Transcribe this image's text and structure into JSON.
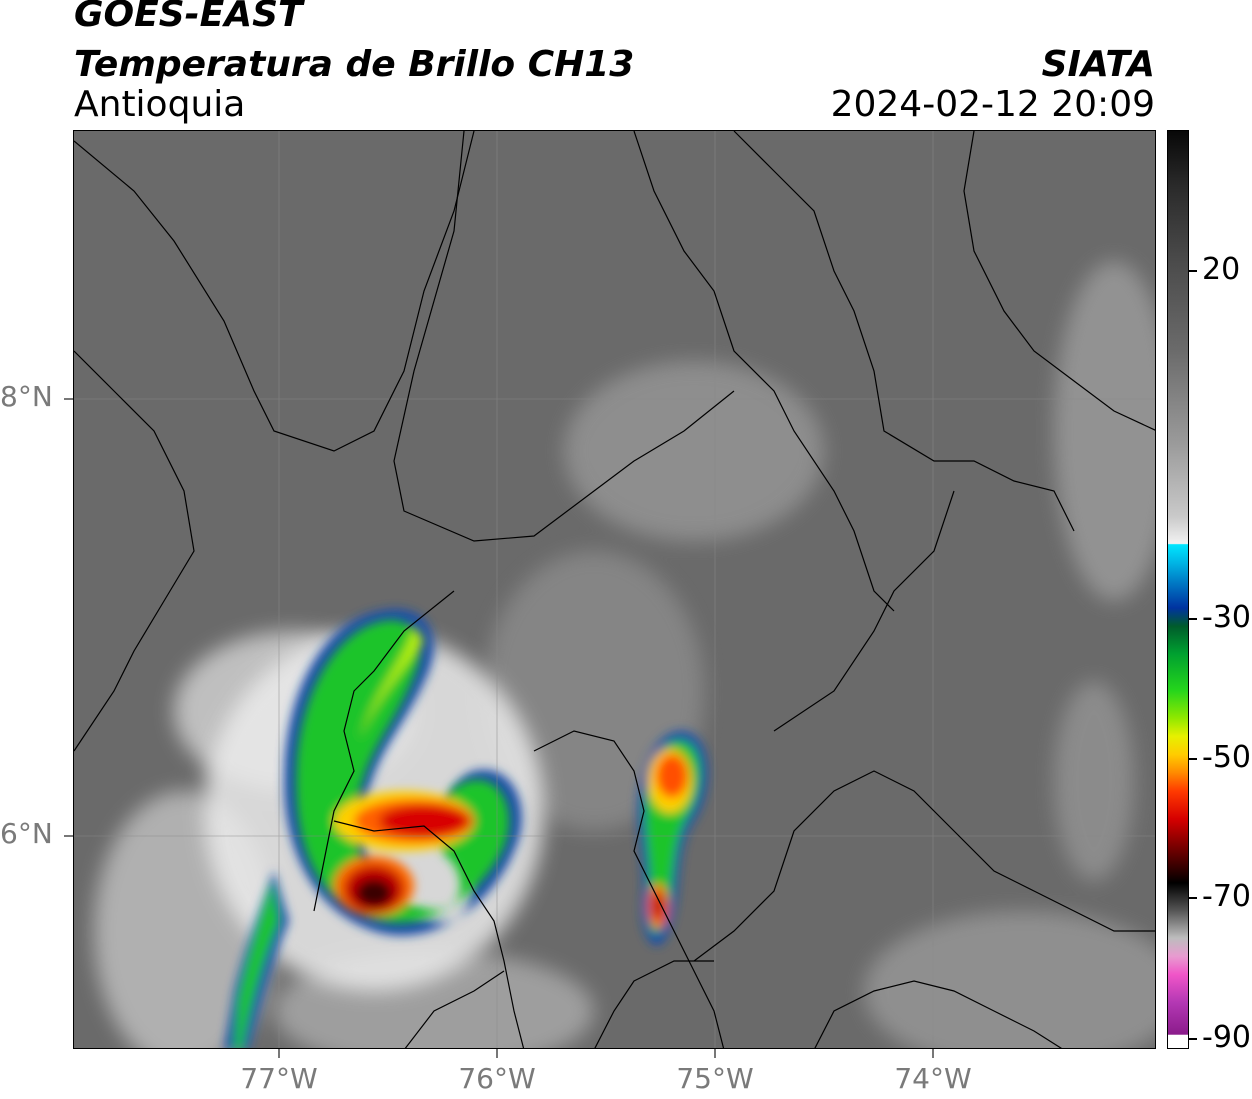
{
  "header": {
    "satellite": "GOES-EAST",
    "product": "Temperatura de Brillo CH13",
    "region": "Antioquia",
    "brand": "SIATA",
    "datetime": "2024-02-12 20:09"
  },
  "map": {
    "lat_labels": [
      "8°N",
      "6°N"
    ],
    "lon_labels": [
      "77°W",
      "76°W",
      "75°W",
      "74°W"
    ]
  },
  "colorbar": {
    "tick_labels": [
      "20",
      "-30",
      "-50",
      "-70",
      "-90"
    ],
    "colors": {
      "warm_gray": "#6c6c6c",
      "cold_cyan": "#00e6ff",
      "green": "#25d51c",
      "yellow": "#e6f000",
      "red": "#d60000",
      "black": "#000000",
      "magenta": "#f055c8"
    }
  }
}
